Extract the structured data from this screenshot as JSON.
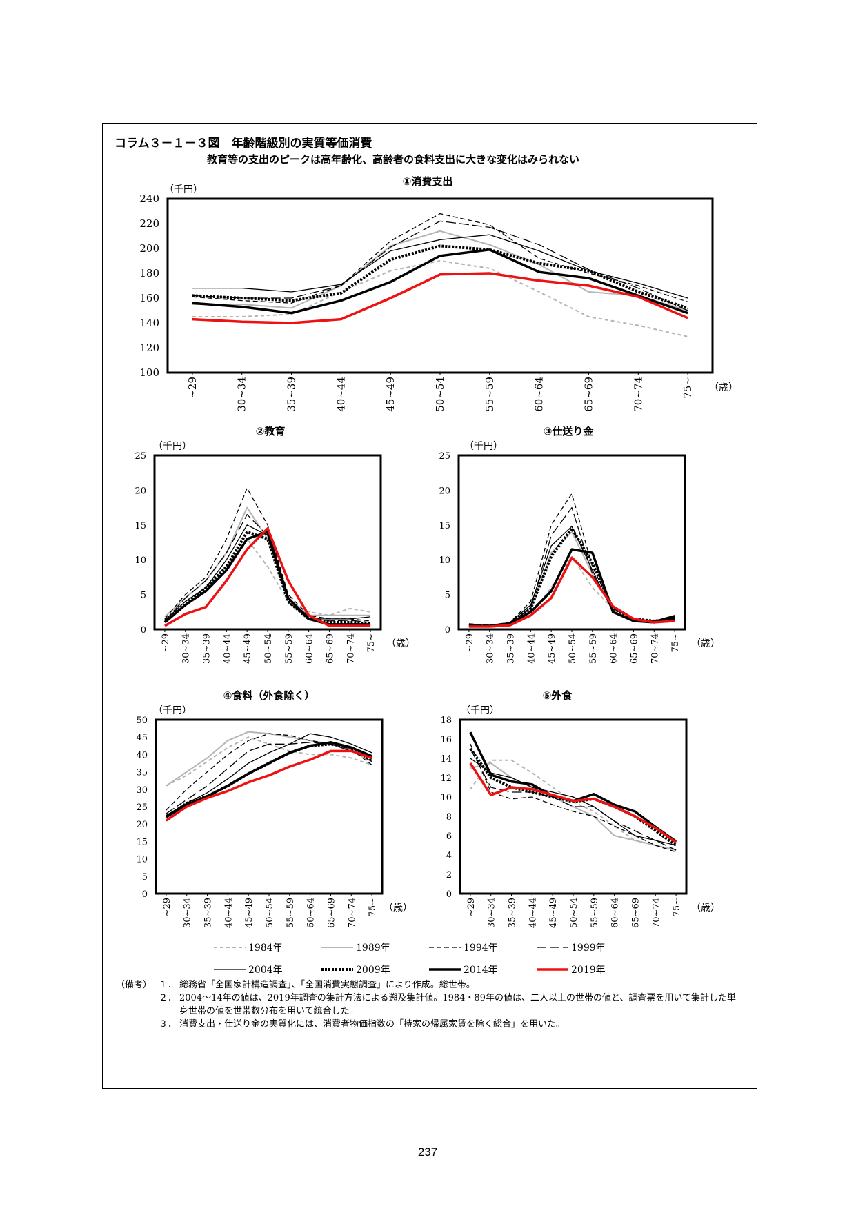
{
  "figure": {
    "title": "コラム３－１－３図　年齢階級別の実質等価消費",
    "subtitle": "教育等の支出のピークは高年齢化、高齢者の食料支出に大きな変化はみられない"
  },
  "series_styles": [
    {
      "name": "1984年",
      "color": "#b4b4b4",
      "width": 2,
      "dash": "5,4"
    },
    {
      "name": "1989年",
      "color": "#b4b4b4",
      "width": 2,
      "dash": ""
    },
    {
      "name": "1994年",
      "color": "#000000",
      "width": 1.3,
      "dash": "7,4"
    },
    {
      "name": "1999年",
      "color": "#000000",
      "width": 1.3,
      "dash": "14,5"
    },
    {
      "name": "2004年",
      "color": "#000000",
      "width": 1.3,
      "dash": ""
    },
    {
      "name": "2009年",
      "color": "#000000",
      "width": 4,
      "dash": "3,2"
    },
    {
      "name": "2014年",
      "color": "#000000",
      "width": 3.5,
      "dash": ""
    },
    {
      "name": "2019年",
      "color": "#ee1111",
      "width": 3.5,
      "dash": ""
    }
  ],
  "legend_labels": [
    "1984年",
    "1989年",
    "1994年",
    "1999年",
    "2004年",
    "2009年",
    "2014年",
    "2019年"
  ],
  "chart_data": [
    {
      "type": "line",
      "title": "①消費支出",
      "unit": "（千円）",
      "xunit": "（歳）",
      "categories": [
        "~29",
        "30~34",
        "35~39",
        "40~44",
        "45~49",
        "50~54",
        "55~59",
        "60~64",
        "65~69",
        "70~74",
        "75~"
      ],
      "ylim": [
        100,
        240
      ],
      "yticks": [
        100,
        120,
        140,
        160,
        180,
        200,
        220,
        240
      ],
      "series": [
        {
          "name": "1984年",
          "values": [
            145,
            145,
            147,
            165,
            182,
            190,
            184,
            165,
            145,
            138,
            129
          ]
        },
        {
          "name": "1989年",
          "values": [
            155,
            155,
            152,
            170,
            202,
            214,
            203,
            187,
            165,
            162,
            150
          ]
        },
        {
          "name": "1994年",
          "values": [
            161,
            158,
            156,
            170,
            206,
            228,
            219,
            192,
            180,
            170,
            157
          ]
        },
        {
          "name": "1999年",
          "values": [
            162,
            160,
            160,
            170,
            201,
            222,
            217,
            203,
            183,
            168,
            150
          ]
        },
        {
          "name": "2004年",
          "values": [
            168,
            168,
            165,
            171,
            198,
            207,
            211,
            198,
            182,
            172,
            160
          ]
        },
        {
          "name": "2009年",
          "values": [
            162,
            160,
            158,
            164,
            191,
            202,
            199,
            188,
            182,
            165,
            152
          ]
        },
        {
          "name": "2014年",
          "values": [
            156,
            153,
            148,
            158,
            173,
            194,
            199,
            181,
            176,
            162,
            148
          ]
        },
        {
          "name": "2019年",
          "values": [
            143,
            141,
            140,
            143,
            160,
            179,
            180,
            174,
            170,
            161,
            144
          ]
        }
      ]
    },
    {
      "type": "line",
      "title": "②教育",
      "unit": "（千円）",
      "xunit": "（歳）",
      "categories": [
        "~29",
        "30~34",
        "35~39",
        "40~44",
        "45~49",
        "50~54",
        "55~59",
        "60~64",
        "65~69",
        "70~74",
        "75~"
      ],
      "ylim": [
        0,
        25
      ],
      "yticks": [
        0,
        5,
        10,
        15,
        20,
        25
      ],
      "series": [
        {
          "name": "1984年",
          "values": [
            1.5,
            4.0,
            6.0,
            9.0,
            13.0,
            9.0,
            4.0,
            2.5,
            2.0,
            3.0,
            2.5
          ]
        },
        {
          "name": "1989年",
          "values": [
            1.8,
            4.5,
            7.0,
            11.0,
            17.5,
            13.0,
            4.5,
            2.0,
            2.0,
            2.0,
            2.0
          ]
        },
        {
          "name": "1994年",
          "values": [
            1.5,
            5.0,
            7.5,
            13.0,
            20.3,
            15.0,
            5.0,
            2.0,
            1.5,
            1.5,
            1.2
          ]
        },
        {
          "name": "1999年",
          "values": [
            1.2,
            4.5,
            7.0,
            11.0,
            16.5,
            13.5,
            4.5,
            1.8,
            1.2,
            1.3,
            1.0
          ]
        },
        {
          "name": "2004年",
          "values": [
            1.3,
            4.0,
            6.0,
            10.0,
            15.0,
            13.5,
            4.0,
            1.5,
            1.5,
            1.5,
            1.8
          ]
        },
        {
          "name": "2009年",
          "values": [
            1.2,
            3.5,
            6.0,
            9.0,
            14.0,
            13.0,
            4.0,
            1.5,
            1.0,
            1.0,
            0.8
          ]
        },
        {
          "name": "2014年",
          "values": [
            1.0,
            3.5,
            5.5,
            8.5,
            13.0,
            14.0,
            4.5,
            1.5,
            0.7,
            0.7,
            0.7
          ]
        },
        {
          "name": "2019年",
          "values": [
            0.5,
            2.2,
            3.2,
            7.0,
            11.5,
            14.5,
            7.0,
            2.0,
            0.5,
            0.5,
            0.5
          ]
        }
      ]
    },
    {
      "type": "line",
      "title": "③仕送り金",
      "unit": "（千円）",
      "xunit": "（歳）",
      "categories": [
        "~29",
        "30~34",
        "35~39",
        "40~44",
        "45~49",
        "50~54",
        "55~59",
        "60~64",
        "65~69",
        "70~74",
        "75~"
      ],
      "ylim": [
        0,
        25
      ],
      "yticks": [
        0,
        5,
        10,
        15,
        20,
        25
      ],
      "series": [
        {
          "name": "1984年",
          "values": [
            0.5,
            0.5,
            0.5,
            2.0,
            6.0,
            10.5,
            6.0,
            3.0,
            1.5,
            1.2,
            1.5
          ]
        },
        {
          "name": "1989年",
          "values": [
            0.6,
            0.5,
            0.8,
            3.0,
            11.0,
            14.0,
            8.0,
            3.0,
            1.5,
            1.2,
            1.5
          ]
        },
        {
          "name": "1994年",
          "values": [
            0.8,
            0.6,
            1.0,
            4.0,
            15.0,
            19.5,
            9.0,
            3.0,
            1.5,
            1.2,
            1.5
          ]
        },
        {
          "name": "1999年",
          "values": [
            0.7,
            0.5,
            1.0,
            3.0,
            13.5,
            17.5,
            8.0,
            3.0,
            1.5,
            1.2,
            1.5
          ]
        },
        {
          "name": "2004年",
          "values": [
            0.6,
            0.5,
            1.0,
            3.5,
            12.0,
            14.8,
            8.5,
            2.5,
            1.5,
            1.2,
            2.0
          ]
        },
        {
          "name": "2009年",
          "values": [
            0.5,
            0.5,
            0.8,
            3.0,
            10.5,
            14.5,
            9.5,
            3.0,
            1.5,
            1.2,
            1.5
          ]
        },
        {
          "name": "2014年",
          "values": [
            0.5,
            0.5,
            0.8,
            2.5,
            5.5,
            11.5,
            11.0,
            2.5,
            1.2,
            1.0,
            1.8
          ]
        },
        {
          "name": "2019年",
          "values": [
            0.4,
            0.4,
            0.6,
            2.0,
            4.5,
            10.3,
            7.5,
            3.3,
            1.5,
            1.0,
            1.2
          ]
        }
      ]
    },
    {
      "type": "line",
      "title": "④食料（外食除く）",
      "unit": "（千円）",
      "xunit": "（歳）",
      "categories": [
        "~29",
        "30~34",
        "35~39",
        "40~44",
        "45~49",
        "50~54",
        "55~59",
        "60~64",
        "65~69",
        "70~74",
        "75~"
      ],
      "ylim": [
        0,
        50
      ],
      "yticks": [
        0,
        5,
        10,
        15,
        20,
        25,
        30,
        35,
        40,
        45,
        50
      ],
      "series": [
        {
          "name": "1984年",
          "values": [
            31.0,
            34.0,
            38.0,
            42.0,
            45.0,
            43.0,
            41.0,
            40.0,
            40.0,
            39.0,
            37.0
          ]
        },
        {
          "name": "1989年",
          "values": [
            31.0,
            35.0,
            39.0,
            44.0,
            46.5,
            46.0,
            45.0,
            44.0,
            43.0,
            41.0,
            38.0
          ]
        },
        {
          "name": "1994年",
          "values": [
            24.0,
            30.0,
            35.0,
            40.0,
            44.0,
            46.0,
            45.5,
            44.0,
            43.0,
            41.5,
            37.0
          ]
        },
        {
          "name": "1999年",
          "values": [
            23.0,
            27.0,
            31.0,
            36.0,
            41.0,
            43.0,
            43.0,
            43.5,
            43.0,
            41.0,
            38.0
          ]
        },
        {
          "name": "2004年",
          "values": [
            22.5,
            26.0,
            29.0,
            33.0,
            37.5,
            40.5,
            43.0,
            46.0,
            45.0,
            43.0,
            40.5
          ]
        },
        {
          "name": "2009年",
          "values": [
            22.0,
            26.0,
            28.0,
            31.0,
            34.5,
            37.5,
            40.5,
            42.5,
            43.0,
            42.0,
            38.5
          ]
        },
        {
          "name": "2014年",
          "values": [
            22.0,
            25.5,
            28.0,
            31.0,
            34.5,
            37.5,
            40.5,
            42.5,
            43.5,
            42.0,
            39.5
          ]
        },
        {
          "name": "2019年",
          "values": [
            21.0,
            25.0,
            27.5,
            29.5,
            32.0,
            34.0,
            36.5,
            38.5,
            41.0,
            41.0,
            39.0
          ]
        }
      ]
    },
    {
      "type": "line",
      "title": "⑤外食",
      "unit": "（千円）",
      "xunit": "（歳）",
      "categories": [
        "~29",
        "30~34",
        "35~39",
        "40~44",
        "45~49",
        "50~54",
        "55~59",
        "60~64",
        "65~69",
        "70~74",
        "75~"
      ],
      "ylim": [
        0,
        18
      ],
      "yticks": [
        0,
        2,
        4,
        6,
        8,
        10,
        12,
        14,
        16,
        18
      ],
      "series": [
        {
          "name": "1984年",
          "values": [
            10.8,
            13.8,
            13.8,
            12.5,
            11.0,
            9.5,
            8.5,
            7.0,
            5.5,
            5.0,
            4.5
          ]
        },
        {
          "name": "1989年",
          "values": [
            13.0,
            13.5,
            12.0,
            11.0,
            10.0,
            9.0,
            8.0,
            6.0,
            5.5,
            5.0,
            4.5
          ]
        },
        {
          "name": "1994年",
          "values": [
            15.5,
            10.5,
            9.8,
            10.0,
            9.2,
            8.5,
            8.0,
            7.0,
            6.0,
            5.0,
            4.3
          ]
        },
        {
          "name": "1999年",
          "values": [
            15.0,
            11.0,
            10.5,
            10.5,
            10.0,
            9.0,
            9.0,
            7.5,
            6.5,
            5.5,
            4.5
          ]
        },
        {
          "name": "2004年",
          "values": [
            14.0,
            12.5,
            12.0,
            11.0,
            10.5,
            10.0,
            9.0,
            7.5,
            6.0,
            5.5,
            5.0
          ]
        },
        {
          "name": "2009年",
          "values": [
            15.0,
            12.0,
            11.0,
            10.5,
            10.0,
            9.5,
            9.8,
            9.0,
            8.0,
            6.5,
            5.0
          ]
        },
        {
          "name": "2014年",
          "values": [
            16.7,
            12.3,
            11.6,
            11.3,
            10.1,
            9.6,
            10.3,
            9.2,
            8.5,
            6.9,
            5.4
          ]
        },
        {
          "name": "2019年",
          "values": [
            13.5,
            10.2,
            11.0,
            10.8,
            10.2,
            9.6,
            9.8,
            9.0,
            8.0,
            6.8,
            5.3
          ]
        }
      ]
    }
  ],
  "notes": {
    "lead": "（備考）",
    "items": [
      {
        "num": "１．",
        "text": "総務省「全国家計構造調査」、「全国消費実態調査」により作成。総世帯。"
      },
      {
        "num": "２．",
        "text": "2004～14年の値は、2019年調査の集計方法による遡及集計値。1984・89年の値は、二人以上の世帯の値と、調査票を用いて集計した単身世帯の値を世帯数分布を用いて統合した。"
      },
      {
        "num": "３．",
        "text": "消費支出・仕送り金の実質化には、消費者物価指数の「持家の帰属家賃を除く総合」を用いた。"
      }
    ]
  },
  "page_number": "237"
}
